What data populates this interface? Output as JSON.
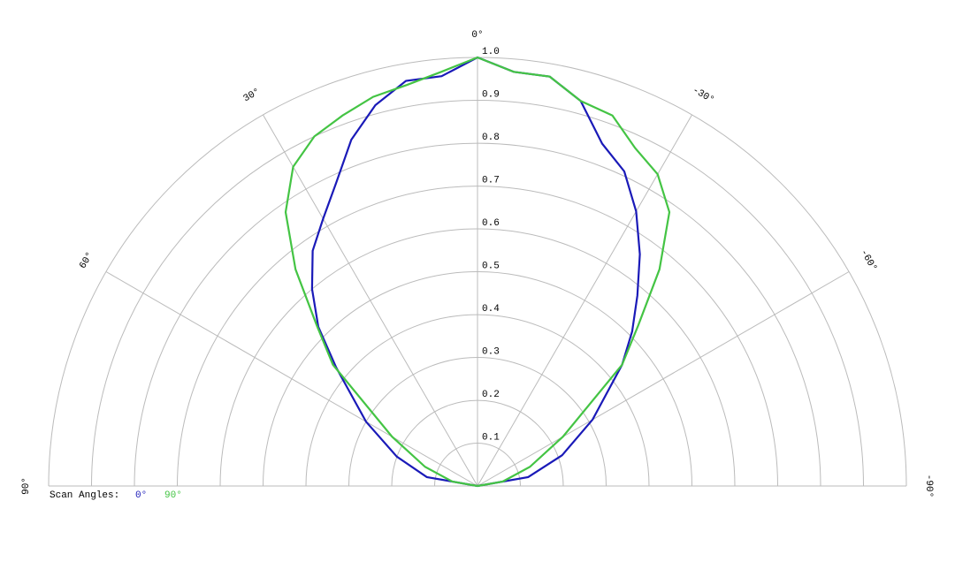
{
  "chart_data": {
    "type": "polar",
    "theta": [
      90,
      80,
      70,
      60,
      50,
      45,
      40,
      35,
      30,
      25,
      20,
      15,
      10,
      5,
      0,
      -5,
      -10,
      -15,
      -20,
      -25,
      -30,
      -35,
      -40,
      -45,
      -50,
      -60,
      -70,
      -80,
      -90
    ],
    "series": [
      {
        "name": "0°",
        "color": "#1a1ab8",
        "values": [
          0,
          0.12,
          0.2,
          0.3,
          0.43,
          0.525,
          0.6,
          0.67,
          0.72,
          0.78,
          0.86,
          0.92,
          0.96,
          0.96,
          1.0,
          0.97,
          0.97,
          0.93,
          0.85,
          0.81,
          0.74,
          0.66,
          0.58,
          0.51,
          0.44,
          0.31,
          0.21,
          0.12,
          0
        ]
      },
      {
        "name": "90°",
        "color": "#44c444",
        "values": [
          0,
          0.06,
          0.13,
          0.23,
          0.44,
          0.53,
          0.66,
          0.78,
          0.86,
          0.9,
          0.92,
          0.94,
          0.95,
          0.97,
          1.0,
          0.97,
          0.97,
          0.93,
          0.92,
          0.87,
          0.84,
          0.78,
          0.66,
          0.53,
          0.44,
          0.23,
          0.13,
          0.06,
          0
        ]
      }
    ],
    "rlim": [
      0,
      1
    ],
    "rticks": [
      0.1,
      0.2,
      0.3,
      0.4,
      0.5,
      0.6,
      0.7,
      0.8,
      0.9,
      {
        "value": 1,
        "label": "1.0"
      }
    ],
    "thetaticks": [
      {
        "value": 90,
        "label": "90°"
      },
      {
        "value": 60,
        "label": "60°"
      },
      {
        "value": 30,
        "label": "30°"
      },
      {
        "value": 0,
        "label": "0°"
      },
      {
        "value": -30,
        "label": "-30°"
      },
      {
        "value": -60,
        "label": "-60°"
      },
      {
        "value": -90,
        "label": "-90°"
      }
    ],
    "legend_title": "Scan Angles:",
    "grid": true
  }
}
